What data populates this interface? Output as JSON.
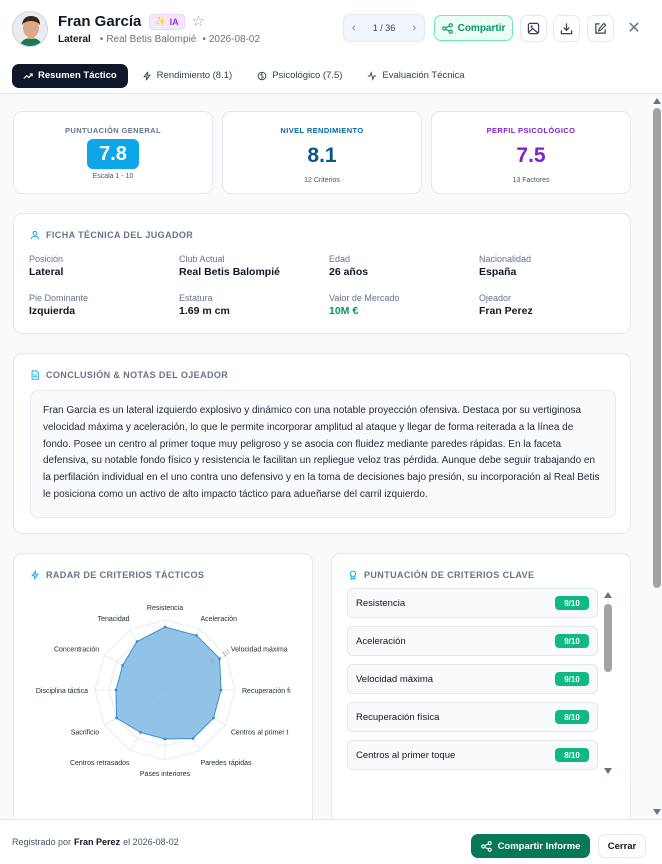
{
  "header": {
    "name": "Fran García",
    "ia_badge": "IA",
    "position": "Lateral",
    "club": "Real Betis Balompié",
    "date": "2026-08-02",
    "pager": "1 / 36",
    "share_label": "Compartir"
  },
  "tabs": [
    {
      "label": "Resumen Táctico"
    },
    {
      "label": "Rendimiento (8.1)"
    },
    {
      "label": "Psicológico (7.5)"
    },
    {
      "label": "Evaluación Técnica"
    }
  ],
  "scores": {
    "general": {
      "label": "PUNTUACIÓN GENERAL",
      "value": "7.8",
      "note": "Escala 1 - 10",
      "color": "#0ea5e9"
    },
    "rendimiento": {
      "label": "NIVEL RENDIMIENTO",
      "value": "8.1",
      "note": "12 Criterios",
      "color": "#0369a1"
    },
    "psicologico": {
      "label": "PERFIL PSICOLÓGICO",
      "value": "7.5",
      "note": "13 Factores",
      "color": "#7e22ce"
    }
  },
  "ficha": {
    "title": "FICHA TÉCNICA DEL JUGADOR",
    "fields": [
      {
        "label": "Posición",
        "value": "Lateral"
      },
      {
        "label": "Club Actual",
        "value": "Real Betis Balompié"
      },
      {
        "label": "Edad",
        "value": "26 años"
      },
      {
        "label": "Nacionalidad",
        "value": "España"
      },
      {
        "label": "Pie Dominante",
        "value": "Izquierda"
      },
      {
        "label": "Estatura",
        "value": "1.69 m cm"
      },
      {
        "label": "Valor de Mercado",
        "value": "10M €"
      },
      {
        "label": "Ojeador",
        "value": "Fran Perez"
      }
    ]
  },
  "notes": {
    "title": "CONCLUSIÓN & NOTAS DEL OJEADOR",
    "text": "Fran García es un lateral izquierdo explosivo y dinámico con una notable proyección ofensiva. Destaca por su vertiginosa velocidad máxima y aceleración, lo que le permite incorporar amplitud al ataque y llegar de forma reiterada a la línea de fondo. Posee un centro al primer toque muy peligroso y se asocia con fluidez mediante paredes rápidas. En la faceta defensiva, su notable fondo físico y resistencia le facilitan un repliegue veloz tras pérdida. Aunque debe seguir trabajando en la perfilación individual en el uno contra uno defensivo y en la toma de decisiones bajo presión, su incorporación al Real Betis le posiciona como un activo de alto impacto táctico para adueñarse del carril izquierdo."
  },
  "radar": {
    "title": "RADAR DE CRITERIOS TÁCTICOS",
    "tick_labels": [
      "10",
      "8"
    ],
    "labels": [
      "Resistencia",
      "Aceleración",
      "Velocidad máxima",
      "Recuperación fi",
      "Centros al primer t",
      "Paredes rápidas",
      "Pases interiores",
      "Centros retrasados",
      "Sacrificio",
      "Disciplina táctica",
      "Concentración",
      "Tenacidad"
    ]
  },
  "chart_data": {
    "type": "radar",
    "categories": [
      "Resistencia",
      "Aceleración",
      "Velocidad máxima",
      "Recuperación física",
      "Centros al primer toque",
      "Paredes rápidas",
      "Pases interiores",
      "Centros retrasados",
      "Sacrificio",
      "Disciplina táctica",
      "Concentración",
      "Tenacidad"
    ],
    "values": [
      9,
      9,
      9,
      8,
      8,
      8,
      7,
      7,
      8,
      7,
      7,
      8
    ],
    "range": [
      0,
      10
    ],
    "fill_color": "#7fb9e3"
  },
  "criterios": {
    "title": "PUNTUACIÓN DE CRITERIOS CLAVE",
    "items": [
      {
        "name": "Resistencia",
        "score": "9/10"
      },
      {
        "name": "Aceleración",
        "score": "9/10"
      },
      {
        "name": "Velocidad máxima",
        "score": "9/10"
      },
      {
        "name": "Recuperación física",
        "score": "8/10"
      },
      {
        "name": "Centros al primer toque",
        "score": "8/10"
      }
    ]
  },
  "footer": {
    "prefix": "Registrado por",
    "author": "Fran Perez",
    "suffix": "el 2026-08-02",
    "share_label": "Compartir Informe",
    "close_label": "Cerrar"
  }
}
